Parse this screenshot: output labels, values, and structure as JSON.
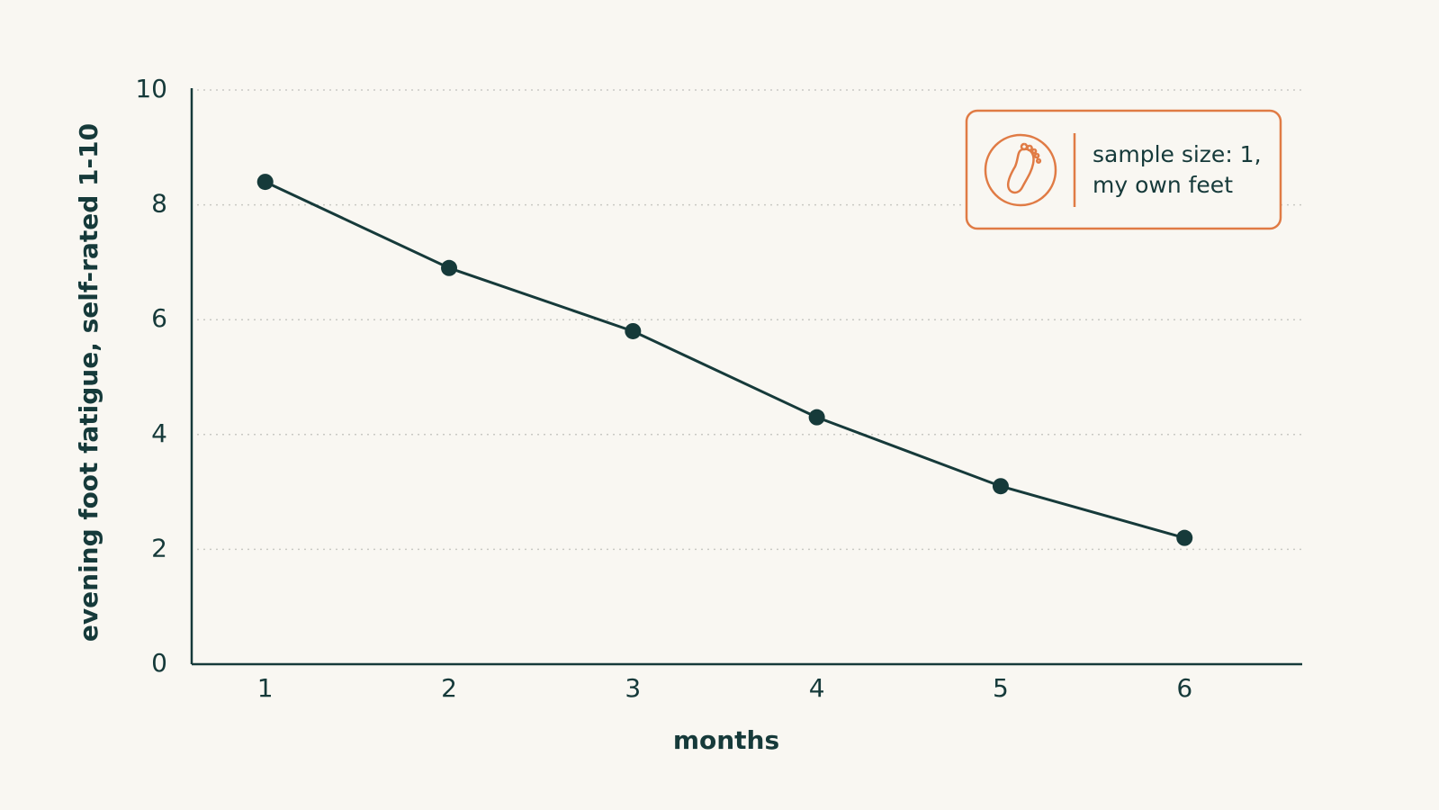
{
  "chart_data": {
    "type": "line",
    "x_label": "months",
    "y_label": "evening foot fatigue, self-rated 1-10",
    "x": [
      1,
      2,
      3,
      4,
      5,
      6
    ],
    "series": [
      {
        "color": "#163a3a",
        "values": [
          8.4,
          6.9,
          5.8,
          4.3,
          3.1,
          2.2
        ]
      }
    ],
    "xlim": [
      0.6,
      6.64
    ],
    "xticks": [
      1,
      2,
      3,
      4,
      5,
      6
    ],
    "ylim": [
      0,
      10
    ],
    "yticks": [
      0,
      2,
      4,
      6,
      8,
      10
    ],
    "grid": true,
    "annotation": [
      "sample size: 1,",
      "my own feet"
    ],
    "annotation_color": "#e07b45"
  }
}
